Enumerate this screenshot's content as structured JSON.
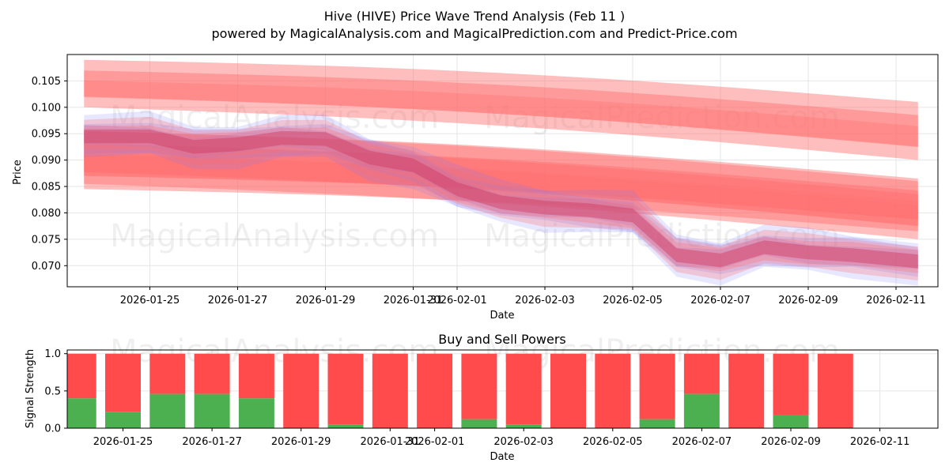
{
  "header": {
    "title": "Hive (HIVE) Price Wave Trend Analysis (Feb 11 )",
    "subtitle": "powered by MagicalAnalysis.com and MagicalPrediction.com and Predict-Price.com"
  },
  "watermarks": [
    "MagicalAnalysis.com",
    "MagicalPrediction.com"
  ],
  "colors": {
    "band_red": "#ff6f6f",
    "band_blue": "#7a7aff",
    "buy_green": "#4caf50",
    "sell_red": "#ff4b4b"
  },
  "chart_data": [
    {
      "type": "area",
      "title": "",
      "xlabel": "Date",
      "ylabel": "Price",
      "xlim": [
        "2026-01-23",
        "2026-02-12"
      ],
      "ylim": [
        0.066,
        0.11
      ],
      "x_ticks": [
        "2026-01-25",
        "2026-01-27",
        "2026-01-29",
        "2026-01-31",
        "2026-02-01",
        "2026-02-03",
        "2026-02-05",
        "2026-02-07",
        "2026-02-09",
        "2026-02-11"
      ],
      "y_ticks": [
        "0.070",
        "0.075",
        "0.080",
        "0.085",
        "0.090",
        "0.095",
        "0.100",
        "0.105"
      ],
      "forecast_bands": [
        {
          "name": "upper forecast band",
          "x": [
            "2026-01-23T12:00",
            "2026-02-11T12:00"
          ],
          "center": [
            0.1045,
            0.0955
          ],
          "start_width": 0.009,
          "end_width": 0.011
        },
        {
          "name": "middle forecast band",
          "x": [
            "2026-01-23T12:00",
            "2026-02-11T12:00"
          ],
          "center": [
            0.0905,
            0.0805
          ],
          "start_width": 0.01,
          "end_width": 0.011
        },
        {
          "name": "lower forecast band",
          "x": [
            "2026-01-23T12:00",
            "2026-02-11T12:00"
          ],
          "center": [
            0.09,
            0.0815
          ],
          "start_width": 0.011,
          "end_width": 0.01
        }
      ],
      "price_wave": {
        "x": [
          "2026-01-23T12:00",
          "2026-01-25",
          "2026-01-26",
          "2026-01-27",
          "2026-01-28",
          "2026-01-29",
          "2026-01-30",
          "2026-01-31",
          "2026-02-01",
          "2026-02-02",
          "2026-02-03",
          "2026-02-04",
          "2026-02-05",
          "2026-02-06",
          "2026-02-07",
          "2026-02-08",
          "2026-02-09",
          "2026-02-10",
          "2026-02-11T12:00"
        ],
        "y": [
          0.0945,
          0.0945,
          0.0925,
          0.093,
          0.0942,
          0.094,
          0.0905,
          0.089,
          0.0845,
          0.082,
          0.081,
          0.0805,
          0.0795,
          0.072,
          0.071,
          0.0735,
          0.0725,
          0.072,
          0.0708
        ]
      }
    },
    {
      "type": "bar",
      "title": "Buy and Sell Powers",
      "xlabel": "Date",
      "ylabel": "Signal Strength",
      "ylim": [
        0,
        1.05
      ],
      "x_ticks": [
        "2026-01-25",
        "2026-01-27",
        "2026-01-29",
        "2026-01-31",
        "2026-02-01",
        "2026-02-03",
        "2026-02-05",
        "2026-02-07",
        "2026-02-09",
        "2026-02-11"
      ],
      "y_ticks": [
        "0.0",
        "0.5",
        "1.0"
      ],
      "categories": [
        "2026-01-24",
        "2026-01-25",
        "2026-01-26",
        "2026-01-27",
        "2026-01-28",
        "2026-01-29",
        "2026-01-30",
        "2026-01-31",
        "2026-02-01",
        "2026-02-02",
        "2026-02-03",
        "2026-02-04",
        "2026-02-05",
        "2026-02-06",
        "2026-02-07",
        "2026-02-08",
        "2026-02-09",
        "2026-02-10"
      ],
      "series": [
        {
          "name": "Buy",
          "values": [
            0.4,
            0.22,
            0.46,
            0.46,
            0.4,
            0.0,
            0.05,
            0.0,
            0.0,
            0.12,
            0.05,
            0.0,
            0.0,
            0.12,
            0.46,
            0.0,
            0.18,
            0.0
          ]
        },
        {
          "name": "Sell",
          "values": [
            0.6,
            0.78,
            0.54,
            0.54,
            0.6,
            1.0,
            0.95,
            1.0,
            1.0,
            0.88,
            0.95,
            1.0,
            1.0,
            0.88,
            0.54,
            1.0,
            0.82,
            1.0
          ]
        }
      ]
    }
  ]
}
